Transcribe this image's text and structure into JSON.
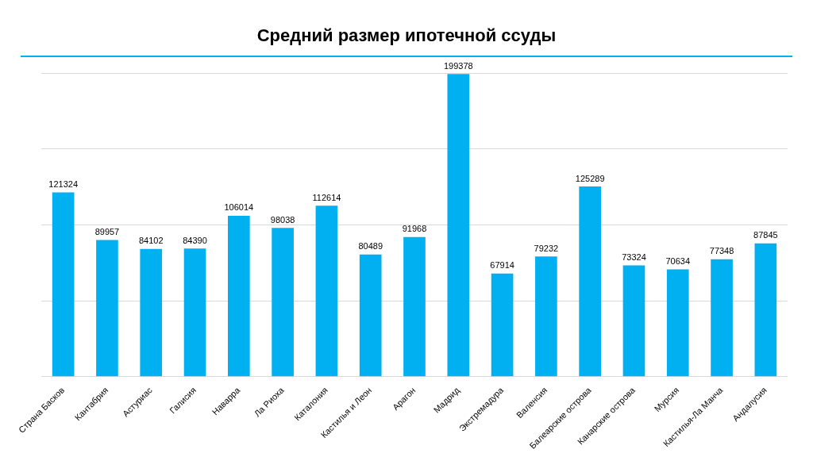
{
  "chart_data": {
    "type": "bar",
    "title": "Средний размер ипотечной ссуды",
    "categories": [
      "Страна Басков",
      "Кантабрия",
      "Астуриас",
      "Галисия",
      "Наварра",
      "Ла Риоха",
      "Каталония",
      "Кастилья и Леон",
      "Арагон",
      "Мадрид",
      "Экстремадура",
      "Валенсия",
      "Балеарские острова",
      "Канарские острова",
      "Мурсия",
      "Кастилья-Ла Манча",
      "Андалусия"
    ],
    "values": [
      121324,
      89957,
      84102,
      84390,
      106014,
      98038,
      112614,
      80489,
      91968,
      199378,
      67914,
      79232,
      125289,
      73324,
      70634,
      77348,
      87845
    ],
    "color": "#00b0f0",
    "ylim": [
      0,
      200000
    ],
    "yticks": [
      {
        "value": 0,
        "label": null
      },
      {
        "value": 50000,
        "label": null
      },
      {
        "value": 100000,
        "label": null
      },
      {
        "value": 150000,
        "label": null
      },
      {
        "value": 200000,
        "label": null
      }
    ],
    "grid": "y",
    "tick_labels": "x",
    "data_labels": true,
    "legend": false
  }
}
